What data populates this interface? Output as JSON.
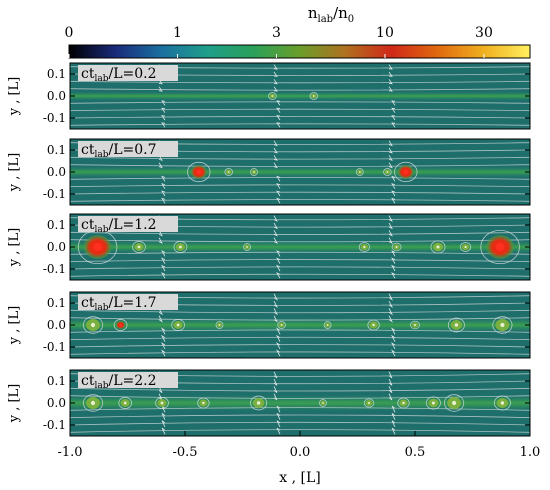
{
  "figure": {
    "colorbar": {
      "label": "n_lab/n_0",
      "label_main": "n",
      "label_sub": "lab",
      "label_slash": "/n",
      "label_sub2": "0",
      "scale": "log",
      "range": [
        0.3,
        50
      ],
      "tick_labels": [
        "0",
        "1",
        "3",
        "10",
        "30"
      ],
      "tick_values": [
        0.3,
        1,
        3,
        10,
        30
      ],
      "colors": [
        "#000000",
        "#1a2a7a",
        "#1a6fa0",
        "#1f9e8a",
        "#2aa05a",
        "#6a9e2a",
        "#b07020",
        "#d02818",
        "#e06a10",
        "#f0b020",
        "#fff060"
      ]
    },
    "panels_common": {
      "ylabel": "y , [L]",
      "yticks": [
        "0.1",
        "0.0",
        "-0.1"
      ],
      "ytick_values": [
        0.1,
        0.0,
        -0.1
      ]
    },
    "xaxis": {
      "label": "x , [L]",
      "ticks": [
        "-1.0",
        "-0.5",
        "0.0",
        "0.5",
        "1.0"
      ],
      "tick_values": [
        -1.0,
        -0.5,
        0.0,
        0.5,
        1.0
      ],
      "range": [
        -1.0,
        1.0
      ]
    }
  },
  "chart_data": {
    "type": "heatmap",
    "title": "",
    "xlabel": "x , [L]",
    "ylabel": "y , [L]",
    "xlim": [
      -1.0,
      1.0
    ],
    "ylim": [
      -0.15,
      0.15
    ],
    "colorbar_label": "n_lab/n_0",
    "panels": [
      {
        "label": "ct_lab/L=0.2",
        "label_main": "ct",
        "label_sub": "lab",
        "label_rest": "/L=0.2",
        "time": 0.2,
        "plasmoids": [
          {
            "x": -0.12,
            "r": 0.012,
            "peak": 6
          },
          {
            "x": 0.06,
            "r": 0.012,
            "peak": 6
          }
        ]
      },
      {
        "label": "ct_lab/L=0.7",
        "label_main": "ct",
        "label_sub": "lab",
        "label_rest": "/L=0.7",
        "time": 0.7,
        "plasmoids": [
          {
            "x": -0.44,
            "r": 0.035,
            "peak": 15
          },
          {
            "x": -0.31,
            "r": 0.012,
            "peak": 8
          },
          {
            "x": -0.2,
            "r": 0.008,
            "peak": 6
          },
          {
            "x": 0.26,
            "r": 0.01,
            "peak": 6
          },
          {
            "x": 0.38,
            "r": 0.012,
            "peak": 8
          },
          {
            "x": 0.46,
            "r": 0.035,
            "peak": 15
          }
        ]
      },
      {
        "label": "ct_lab/L=1.2",
        "label_main": "ct",
        "label_sub": "lab",
        "label_rest": "/L=1.2",
        "time": 1.2,
        "plasmoids": [
          {
            "x": -0.88,
            "r": 0.06,
            "peak": 20
          },
          {
            "x": -0.7,
            "r": 0.02,
            "peak": 8
          },
          {
            "x": -0.52,
            "r": 0.02,
            "peak": 7
          },
          {
            "x": -0.23,
            "r": 0.008,
            "peak": 5
          },
          {
            "x": 0.28,
            "r": 0.016,
            "peak": 6
          },
          {
            "x": 0.42,
            "r": 0.014,
            "peak": 6
          },
          {
            "x": 0.6,
            "r": 0.022,
            "peak": 7
          },
          {
            "x": 0.72,
            "r": 0.016,
            "peak": 6
          },
          {
            "x": 0.87,
            "r": 0.06,
            "peak": 20
          }
        ]
      },
      {
        "label": "ct_lab/L=1.7",
        "label_main": "ct",
        "label_sub": "lab",
        "label_rest": "/L=1.7",
        "time": 1.7,
        "plasmoids": [
          {
            "x": -0.9,
            "r": 0.03,
            "peak": 8
          },
          {
            "x": -0.78,
            "r": 0.02,
            "peak": 10
          },
          {
            "x": -0.53,
            "r": 0.02,
            "peak": 7
          },
          {
            "x": -0.35,
            "r": 0.01,
            "peak": 6
          },
          {
            "x": -0.08,
            "r": 0.012,
            "peak": 6
          },
          {
            "x": 0.12,
            "r": 0.008,
            "peak": 5
          },
          {
            "x": 0.32,
            "r": 0.018,
            "peak": 7
          },
          {
            "x": 0.5,
            "r": 0.014,
            "peak": 6
          },
          {
            "x": 0.68,
            "r": 0.025,
            "peak": 8
          },
          {
            "x": 0.88,
            "r": 0.03,
            "peak": 9
          }
        ]
      },
      {
        "label": "ct_lab/L=2.2",
        "label_main": "ct",
        "label_sub": "lab",
        "label_rest": "/L=2.2",
        "time": 2.2,
        "plasmoids": [
          {
            "x": -0.9,
            "r": 0.03,
            "peak": 7
          },
          {
            "x": -0.76,
            "r": 0.02,
            "peak": 8
          },
          {
            "x": -0.6,
            "r": 0.02,
            "peak": 8
          },
          {
            "x": -0.42,
            "r": 0.018,
            "peak": 6
          },
          {
            "x": -0.18,
            "r": 0.025,
            "peak": 7
          },
          {
            "x": 0.1,
            "r": 0.01,
            "peak": 5
          },
          {
            "x": 0.3,
            "r": 0.015,
            "peak": 6
          },
          {
            "x": 0.45,
            "r": 0.018,
            "peak": 6
          },
          {
            "x": 0.58,
            "r": 0.022,
            "peak": 7
          },
          {
            "x": 0.67,
            "r": 0.03,
            "peak": 8
          },
          {
            "x": 0.88,
            "r": 0.025,
            "peak": 7
          }
        ]
      }
    ]
  }
}
